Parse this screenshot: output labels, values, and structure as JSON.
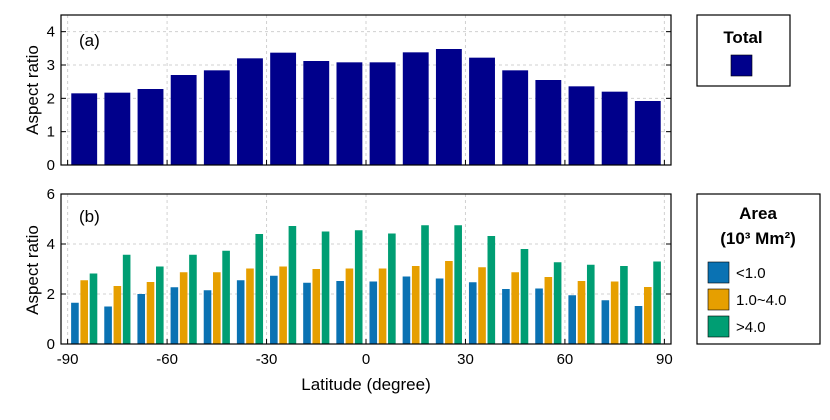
{
  "chart_data": [
    {
      "type": "bar",
      "panel_label": "(a)",
      "x": [
        -85,
        -75,
        -65,
        -55,
        -45,
        -35,
        -25,
        -15,
        -5,
        5,
        15,
        25,
        35,
        45,
        55,
        65,
        75,
        85
      ],
      "series": [
        {
          "name": "Total",
          "color": "#00008b",
          "values": [
            2.15,
            2.17,
            2.28,
            2.7,
            2.84,
            3.2,
            3.37,
            3.12,
            3.08,
            3.08,
            3.38,
            3.48,
            3.22,
            2.84,
            2.55,
            2.36,
            2.2,
            1.92
          ]
        }
      ],
      "ylabel": "Aspect ratio",
      "ylim": [
        0,
        4.5
      ],
      "yticks": [
        0,
        1,
        2,
        3,
        4
      ],
      "grid": true,
      "legend": {
        "title": "Total",
        "position": "right"
      }
    },
    {
      "type": "bar",
      "panel_label": "(b)",
      "x": [
        -85,
        -75,
        -65,
        -55,
        -45,
        -35,
        -25,
        -15,
        -5,
        5,
        15,
        25,
        35,
        45,
        55,
        65,
        75,
        85
      ],
      "series": [
        {
          "name": "<1.0",
          "color": "#0a72b3",
          "values": [
            1.65,
            1.5,
            2.0,
            2.27,
            2.15,
            2.55,
            2.73,
            2.45,
            2.52,
            2.5,
            2.7,
            2.62,
            2.47,
            2.2,
            2.22,
            1.95,
            1.75,
            1.52
          ]
        },
        {
          "name": "1.0~4.0",
          "color": "#e69f00",
          "values": [
            2.55,
            2.32,
            2.48,
            2.87,
            2.87,
            3.02,
            3.1,
            3.0,
            3.02,
            3.02,
            3.12,
            3.32,
            3.07,
            2.87,
            2.68,
            2.52,
            2.5,
            2.28
          ]
        },
        {
          "name": ">4.0",
          "color": "#009e73",
          "values": [
            2.82,
            3.57,
            3.1,
            3.57,
            3.73,
            4.4,
            4.72,
            4.5,
            4.55,
            4.42,
            4.75,
            4.75,
            4.32,
            3.8,
            3.27,
            3.17,
            3.12,
            3.3
          ]
        }
      ],
      "xlabel": "Latitude (degree)",
      "xlim": [
        -92,
        92
      ],
      "xticks": [
        -90,
        -60,
        -30,
        0,
        30,
        60,
        90
      ],
      "ylabel": "Aspect ratio",
      "ylim": [
        0,
        6
      ],
      "yticks": [
        0,
        2,
        4,
        6
      ],
      "grid": true,
      "legend": {
        "title_line1": "Area",
        "title_line2": "(10³ Mm²)",
        "position": "right"
      }
    }
  ]
}
